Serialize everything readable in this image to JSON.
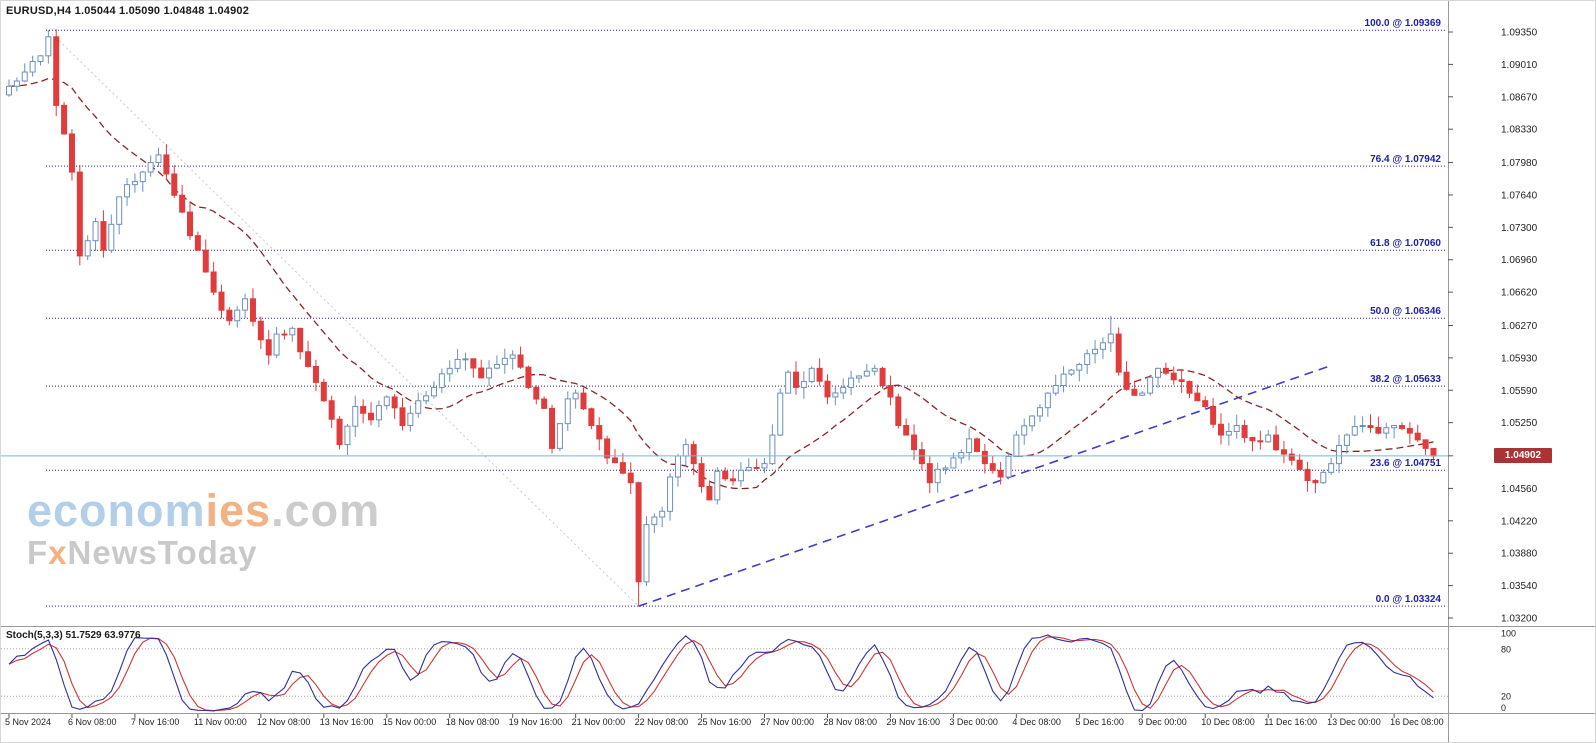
{
  "header": {
    "title": "EURUSD,H4 1.05044 1.05090 1.04848 1.04902"
  },
  "stoch_header": {
    "title": "Stoch(5,3,3) 51.7529 63.9776"
  },
  "price_tag": {
    "value": "1.04902"
  },
  "watermark": {
    "econom": "econom",
    "ies": "ies",
    "dotcom": ".com",
    "fx_f": "F",
    "fx_x": "x",
    "fx_rest": "NewsToday"
  },
  "chart_data": {
    "type": "candlestick",
    "symbol": "EURUSD",
    "timeframe": "H4",
    "ohlc_display": {
      "open": "1.05044",
      "high": "1.05090",
      "low": "1.04848",
      "close": "1.04902"
    },
    "current_price": 1.04902,
    "ylim": [
      1.032,
      1.0955
    ],
    "price_axis_labels": [
      "1.09350",
      "1.09010",
      "1.08670",
      "1.08330",
      "1.07980",
      "1.07640",
      "1.07300",
      "1.06960",
      "1.06620",
      "1.06270",
      "1.05930",
      "1.05590",
      "1.05250",
      "1.04560",
      "1.04220",
      "1.03880",
      "1.03540",
      "1.03200"
    ],
    "x_labels": [
      "5 Nov 2024",
      "6 Nov 08:00",
      "7 Nov 16:00",
      "11 Nov 00:00",
      "12 Nov 08:00",
      "13 Nov 16:00",
      "15 Nov 00:00",
      "18 Nov 08:00",
      "19 Nov 16:00",
      "21 Nov 00:00",
      "22 Nov 08:00",
      "25 Nov 16:00",
      "27 Nov 00:00",
      "28 Nov 08:00",
      "29 Nov 16:00",
      "3 Dec 00:00",
      "4 Dec 08:00",
      "5 Dec 16:00",
      "9 Dec 00:00",
      "10 Dec 08:00",
      "11 Dec 16:00",
      "13 Dec 00:00",
      "16 Dec 08:00"
    ],
    "candles_per_label": 8,
    "candle_count": 182,
    "price_path_anchors": [
      [
        0,
        1.0878
      ],
      [
        2,
        1.0893
      ],
      [
        4,
        1.091
      ],
      [
        5,
        1.093
      ],
      [
        6,
        1.0858
      ],
      [
        7,
        1.0828
      ],
      [
        8,
        1.0788
      ],
      [
        9,
        1.07
      ],
      [
        10,
        1.0716
      ],
      [
        11,
        1.0736
      ],
      [
        12,
        1.0706
      ],
      [
        14,
        1.0762
      ],
      [
        16,
        1.0778
      ],
      [
        18,
        1.0798
      ],
      [
        19,
        1.0806
      ],
      [
        20,
        1.0786
      ],
      [
        22,
        1.0746
      ],
      [
        24,
        1.0706
      ],
      [
        26,
        1.0662
      ],
      [
        28,
        1.0632
      ],
      [
        30,
        1.0655
      ],
      [
        32,
        1.0612
      ],
      [
        33,
        1.0596
      ],
      [
        34,
        1.0618
      ],
      [
        36,
        1.0624
      ],
      [
        38,
        1.0584
      ],
      [
        40,
        1.0548
      ],
      [
        42,
        1.0502
      ],
      [
        44,
        1.0542
      ],
      [
        46,
        1.0528
      ],
      [
        48,
        1.0552
      ],
      [
        50,
        1.0522
      ],
      [
        52,
        1.0548
      ],
      [
        54,
        1.0562
      ],
      [
        56,
        1.0582
      ],
      [
        58,
        1.0592
      ],
      [
        60,
        1.0572
      ],
      [
        62,
        1.0586
      ],
      [
        64,
        1.0596
      ],
      [
        66,
        1.0562
      ],
      [
        68,
        1.054
      ],
      [
        69,
        1.0498
      ],
      [
        70,
        1.0524
      ],
      [
        71,
        1.055
      ],
      [
        72,
        1.0556
      ],
      [
        74,
        1.0522
      ],
      [
        76,
        1.0488
      ],
      [
        78,
        1.0472
      ],
      [
        79,
        1.0462
      ],
      [
        80,
        1.0358
      ],
      [
        81,
        1.0418
      ],
      [
        82,
        1.0426
      ],
      [
        83,
        1.0432
      ],
      [
        84,
        1.0468
      ],
      [
        85,
        1.049
      ],
      [
        86,
        1.0502
      ],
      [
        87,
        1.0482
      ],
      [
        88,
        1.0458
      ],
      [
        89,
        1.0444
      ],
      [
        90,
        1.0474
      ],
      [
        92,
        1.0464
      ],
      [
        94,
        1.0478
      ],
      [
        96,
        1.0482
      ],
      [
        97,
        1.0512
      ],
      [
        98,
        1.0556
      ],
      [
        99,
        1.0578
      ],
      [
        100,
        1.0562
      ],
      [
        102,
        1.0582
      ],
      [
        104,
        1.0552
      ],
      [
        106,
        1.0562
      ],
      [
        108,
        1.0574
      ],
      [
        110,
        1.0582
      ],
      [
        112,
        1.0552
      ],
      [
        113,
        1.0522
      ],
      [
        114,
        1.0512
      ],
      [
        116,
        1.0482
      ],
      [
        117,
        1.0462
      ],
      [
        118,
        1.0476
      ],
      [
        120,
        1.0488
      ],
      [
        122,
        1.0508
      ],
      [
        124,
        1.0482
      ],
      [
        126,
        1.0468
      ],
      [
        128,
        1.0512
      ],
      [
        130,
        1.0532
      ],
      [
        132,
        1.0556
      ],
      [
        134,
        1.0576
      ],
      [
        136,
        1.0586
      ],
      [
        138,
        1.0602
      ],
      [
        140,
        1.0618
      ],
      [
        141,
        1.0578
      ],
      [
        142,
        1.056
      ],
      [
        144,
        1.0556
      ],
      [
        146,
        1.0582
      ],
      [
        148,
        1.057
      ],
      [
        150,
        1.0556
      ],
      [
        152,
        1.0542
      ],
      [
        154,
        1.0512
      ],
      [
        156,
        1.0522
      ],
      [
        158,
        1.0506
      ],
      [
        160,
        1.0512
      ],
      [
        162,
        1.0492
      ],
      [
        164,
        1.0476
      ],
      [
        166,
        1.0462
      ],
      [
        168,
        1.0482
      ],
      [
        170,
        1.0512
      ],
      [
        172,
        1.0522
      ],
      [
        174,
        1.0514
      ],
      [
        176,
        1.0522
      ],
      [
        178,
        1.0514
      ],
      [
        180,
        1.0498
      ],
      [
        181,
        1.049
      ]
    ],
    "wick_overrides": [
      {
        "i": 5,
        "high": 1.09369
      },
      {
        "i": 42,
        "low": 1.0497
      },
      {
        "i": 80,
        "low": 1.03324
      },
      {
        "i": 140,
        "high": 1.0637
      }
    ],
    "fibonacci": [
      {
        "label": "100.0 @ 1.09369",
        "price": 1.09369
      },
      {
        "label": "76.4 @ 1.07942",
        "price": 1.07942
      },
      {
        "label": "61.8 @ 1.07060",
        "price": 1.0706
      },
      {
        "label": "50.0 @ 1.06346",
        "price": 1.06346
      },
      {
        "label": "38.2 @ 1.05633",
        "price": 1.05633
      },
      {
        "label": "23.6 @ 1.04751",
        "price": 1.04751
      },
      {
        "label": "0.0 @ 1.03324",
        "price": 1.03324
      }
    ],
    "fib_baseline": {
      "from": {
        "i": 5,
        "price": 1.09369
      },
      "to": {
        "i": 80,
        "price": 1.03324
      }
    },
    "trendline": {
      "from": {
        "i": 80,
        "price": 1.03324
      },
      "to": {
        "i": 168,
        "price": 1.0585
      }
    },
    "moving_average": {
      "type": "SMA",
      "period": 16,
      "style": "dashed"
    },
    "stochastic": {
      "k": 5,
      "d": 3,
      "slowing": 3,
      "last_k": 51.7529,
      "last_d": 63.9776,
      "levels": [
        20,
        80
      ],
      "scale_labels": [
        "100",
        "80",
        "20",
        "0"
      ]
    },
    "colors": {
      "bull_stroke": "#6b8fc0",
      "bull_fill": "#ffffff",
      "bear": "#e03c3c",
      "ma": "#8b2424",
      "fib": "#2020a8",
      "trend": "#3d3dcc",
      "baseline": "#c9c9c9",
      "price_line": "#5ec1de",
      "price_tag_bg": "#a93434",
      "stoch_k": "#30309a",
      "stoch_d": "#cf3535",
      "level_line": "#aaaaaa",
      "separator": "#999999",
      "axis_text": "#222222"
    }
  }
}
